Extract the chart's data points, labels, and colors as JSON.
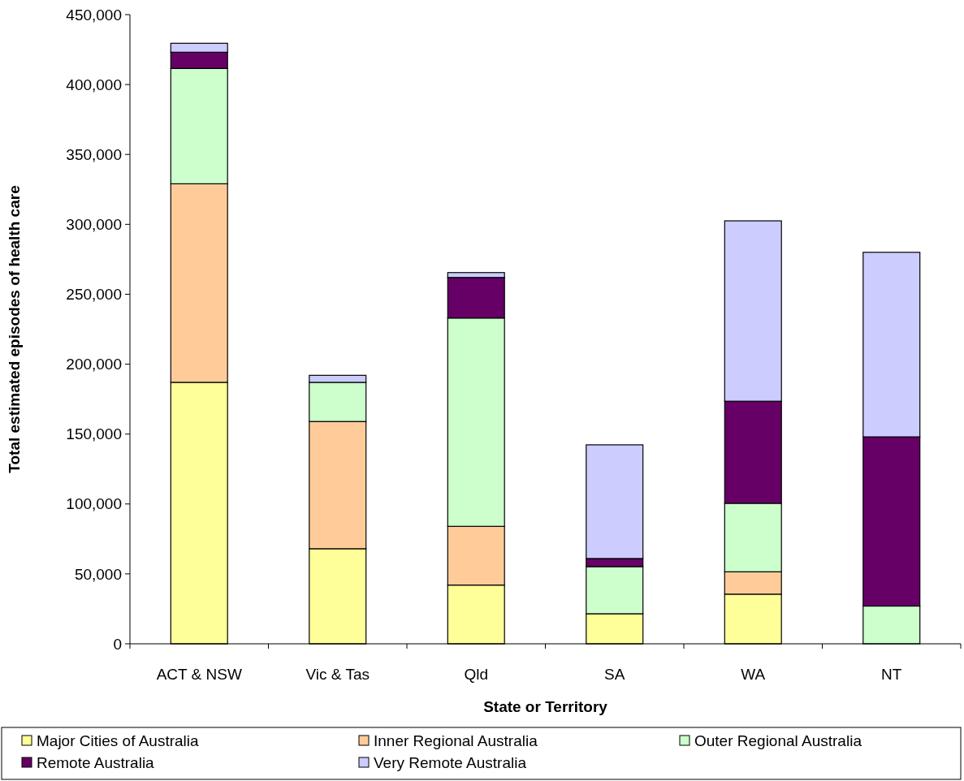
{
  "chart_data": {
    "type": "bar",
    "stacked": true,
    "xlabel": "State or Territory",
    "ylabel": "Total estimated episodes of health care",
    "categories": [
      "ACT & NSW",
      "Vic & Tas",
      "Qld",
      "SA",
      "WA",
      "NT"
    ],
    "series": [
      {
        "name": "Major Cities of Australia",
        "color": "#ffff99",
        "values": [
          187000,
          68000,
          42000,
          21500,
          35500,
          0
        ]
      },
      {
        "name": "Inner Regional Australia",
        "color": "#ffcc99",
        "values": [
          142000,
          91000,
          42000,
          0,
          16000,
          0
        ]
      },
      {
        "name": "Outer Regional Australia",
        "color": "#ccffcc",
        "values": [
          82500,
          28000,
          149000,
          33700,
          49000,
          27000
        ]
      },
      {
        "name": "Remote Australia",
        "color": "#660066",
        "values": [
          11600,
          0,
          29000,
          5800,
          73000,
          121000
        ]
      },
      {
        "name": "Very Remote Australia",
        "color": "#ccccff",
        "values": [
          6400,
          5000,
          3500,
          81300,
          129000,
          132000
        ]
      }
    ],
    "ylim": [
      0,
      450000
    ],
    "yticks": [
      {
        "value": 0,
        "label": "0"
      },
      {
        "value": 50000,
        "label": "50,000"
      },
      {
        "value": 100000,
        "label": "100,000"
      },
      {
        "value": 150000,
        "label": "150,000"
      },
      {
        "value": 200000,
        "label": "200,000"
      },
      {
        "value": 250000,
        "label": "250,000"
      },
      {
        "value": 300000,
        "label": "300,000"
      },
      {
        "value": 350000,
        "label": "350,000"
      },
      {
        "value": 400000,
        "label": "400,000"
      },
      {
        "value": 450000,
        "label": "450,000"
      }
    ],
    "grid": false,
    "legend": "bottom"
  }
}
